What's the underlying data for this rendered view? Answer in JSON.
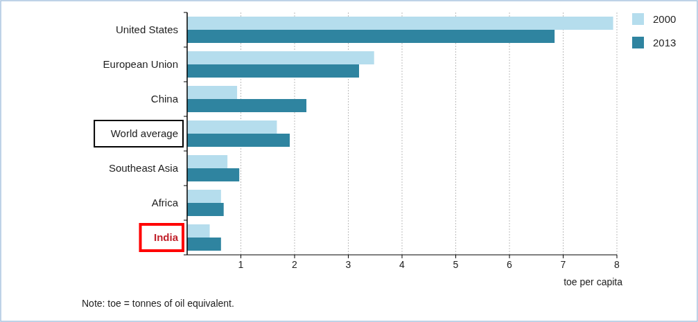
{
  "chart_data": {
    "type": "bar",
    "orientation": "horizontal",
    "categories": [
      "United States",
      "European Union",
      "China",
      "World average",
      "Southeast Asia",
      "Africa",
      "India"
    ],
    "series": [
      {
        "name": "2000",
        "color": "#b5dded",
        "values": [
          7.93,
          3.48,
          0.93,
          1.67,
          0.75,
          0.63,
          0.42
        ]
      },
      {
        "name": "2013",
        "color": "#2f84a0",
        "values": [
          6.84,
          3.2,
          2.22,
          1.91,
          0.97,
          0.68,
          0.63
        ]
      }
    ],
    "xlim": [
      0,
      8
    ],
    "xticks": [
      1,
      2,
      3,
      4,
      5,
      6,
      7,
      8
    ],
    "xlabel": "toe per capita",
    "grid": "x",
    "legend": "top right",
    "annotations": [
      "Note: toe = tonnes of oil equivalent."
    ]
  }
}
